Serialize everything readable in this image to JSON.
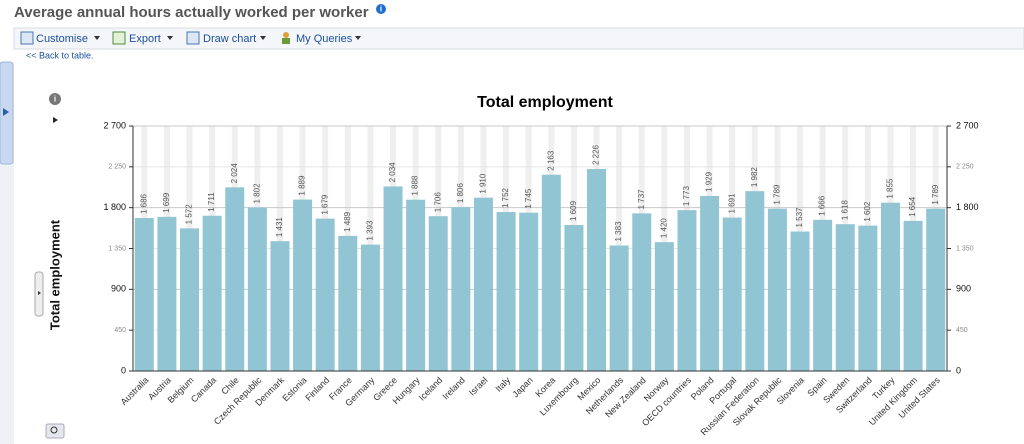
{
  "header": {
    "title": "Average annual hours actually worked per worker"
  },
  "toolbar": {
    "items": [
      "Customise",
      "Export",
      "Draw chart",
      "My Queries"
    ]
  },
  "back_link": "<< Back to table.",
  "chart_data": {
    "type": "bar",
    "title": "Total employment",
    "y_axis_label": "Total employment",
    "categories": [
      "Australia",
      "Austria",
      "Belgium",
      "Canada",
      "Chile",
      "Czech Republic",
      "Denmark",
      "Estonia",
      "Finland",
      "France",
      "Germany",
      "Greece",
      "Hungary",
      "Iceland",
      "Ireland",
      "Israel",
      "Italy",
      "Japan",
      "Korea",
      "Luxembourg",
      "Mexico",
      "Netherlands",
      "New Zealand",
      "Norway",
      "OECD countries",
      "Poland",
      "Portugal",
      "Russian Federation",
      "Slovak Republic",
      "Slovenia",
      "Spain",
      "Sweden",
      "Switzerland",
      "Turkey",
      "United Kingdom",
      "United States"
    ],
    "values": [
      1686,
      1699,
      1572,
      1711,
      2024,
      1802,
      1431,
      1889,
      1679,
      1489,
      1393,
      2034,
      1888,
      1706,
      1806,
      1910,
      1752,
      1745,
      2163,
      1609,
      2226,
      1383,
      1737,
      1420,
      1773,
      1929,
      1691,
      1982,
      1789,
      1537,
      1666,
      1618,
      1602,
      1855,
      1654,
      1789
    ],
    "value_labels": [
      "1 686",
      "1 699",
      "1 572",
      "1 711",
      "2 024",
      "1 802",
      "1 431",
      "1 889",
      "1 679",
      "1 489",
      "1 393",
      "2 034",
      "1 888",
      "1 706",
      "1 806",
      "1 910",
      "1 752",
      "1 745",
      "2 163",
      "1 609",
      "2 226",
      "1 383",
      "1 737",
      "1 420",
      "1 773",
      "1 929",
      "1 691",
      "1 982",
      "1 789",
      "1 537",
      "1 666",
      "1 618",
      "1 602",
      "1 855",
      "1 654",
      "1 789"
    ],
    "color": "#92c5d3",
    "ylim": [
      0,
      2700
    ],
    "yticks": [
      0,
      450,
      900,
      {
        "value": 1350,
        "label": "1 350"
      },
      {
        "value": 1800,
        "label": "1 800"
      },
      {
        "value": 2250,
        "label": "2 250"
      },
      {
        "value": 2700,
        "label": "2 700"
      }
    ],
    "y2lim": [
      0,
      2700
    ],
    "y2ticks": [
      0,
      450,
      900,
      {
        "value": 1350,
        "label": "1 350"
      },
      {
        "value": 1800,
        "label": "1 800"
      },
      {
        "value": 2250,
        "label": "2 250"
      },
      {
        "value": 2700,
        "label": "2 700"
      }
    ],
    "grid": true
  }
}
